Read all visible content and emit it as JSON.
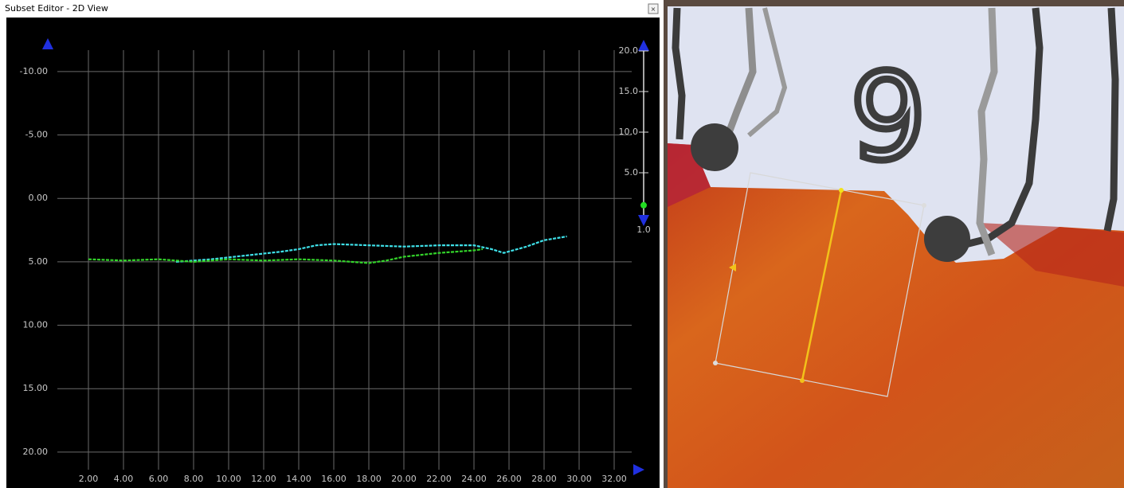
{
  "window": {
    "title": "Subset Editor - 2D View"
  },
  "chart_data": {
    "type": "line",
    "xlim": [
      0,
      33
    ],
    "xticks": [
      {
        "value": 2,
        "label": "2.00"
      },
      {
        "value": 4,
        "label": "4.00"
      },
      {
        "value": 6,
        "label": "6.00"
      },
      {
        "value": 8,
        "label": "8.00"
      },
      {
        "value": 10,
        "label": "10.00"
      },
      {
        "value": 12,
        "label": "12.00"
      },
      {
        "value": 14,
        "label": "14.00"
      },
      {
        "value": 16,
        "label": "16.00"
      },
      {
        "value": 18,
        "label": "18.00"
      },
      {
        "value": 20,
        "label": "20.00"
      },
      {
        "value": 22,
        "label": "22.00"
      },
      {
        "value": 24,
        "label": "24.00"
      },
      {
        "value": 26,
        "label": "26.00"
      },
      {
        "value": 28,
        "label": "28.00"
      },
      {
        "value": 30,
        "label": "30.00"
      },
      {
        "value": 32,
        "label": "32.00"
      }
    ],
    "ylim": [
      -12.5,
      21.7
    ],
    "y_inverted": true,
    "yticks": [
      {
        "value": -10,
        "label": "-10.00"
      },
      {
        "value": -5,
        "label": "-5.00"
      },
      {
        "value": 0,
        "label": "0.00"
      },
      {
        "value": 5,
        "label": "5.00"
      },
      {
        "value": 10,
        "label": "10.00"
      },
      {
        "value": 15,
        "label": "15.00"
      },
      {
        "value": 20,
        "label": "20.00"
      }
    ],
    "grid": true,
    "series": [
      {
        "color": "#3ee0e8",
        "x": [
          7,
          9,
          11,
          13,
          14,
          15,
          16,
          18,
          20,
          22,
          24,
          25,
          25.7,
          27,
          28,
          29.3
        ],
        "values": [
          5.0,
          4.8,
          4.5,
          4.2,
          4.0,
          3.7,
          3.6,
          3.7,
          3.8,
          3.7,
          3.7,
          4.0,
          4.3,
          3.8,
          3.3,
          3.0
        ]
      },
      {
        "color": "#33d42a",
        "x": [
          2,
          4,
          6,
          8,
          10,
          12,
          14,
          16,
          18,
          19,
          20,
          22,
          24,
          24.5
        ],
        "values": [
          4.8,
          4.9,
          4.8,
          5.0,
          4.8,
          4.9,
          4.8,
          4.9,
          5.1,
          4.9,
          4.6,
          4.3,
          4.1,
          4.0
        ]
      }
    ]
  },
  "scale": {
    "lim": [
      0,
      20.8
    ],
    "ticks": [
      {
        "value": 20,
        "label": "20.0"
      },
      {
        "value": 15,
        "label": "15.0"
      },
      {
        "value": 10,
        "label": "10.0"
      },
      {
        "value": 5,
        "label": "5.0"
      }
    ],
    "value": {
      "value": 1,
      "label": "1.0"
    }
  },
  "map_view": {
    "label": "9"
  }
}
